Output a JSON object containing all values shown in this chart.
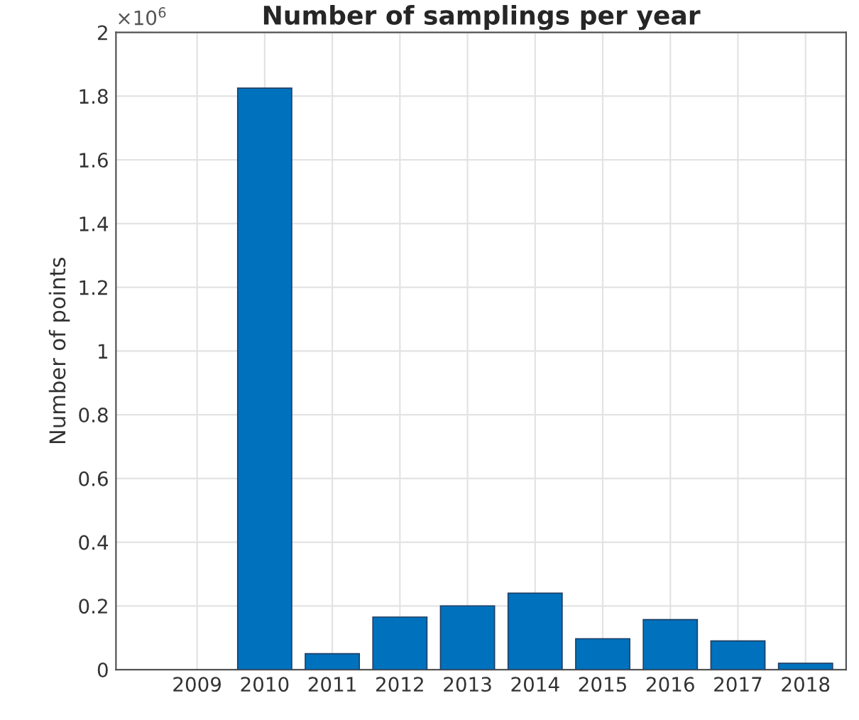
{
  "chart_data": {
    "type": "bar",
    "title": "Number of samplings per year",
    "ylabel": "Number of points",
    "categories": [
      "2009",
      "2010",
      "2011",
      "2012",
      "2013",
      "2014",
      "2015",
      "2016",
      "2017",
      "2018"
    ],
    "values": [
      null,
      1.825,
      0.05,
      0.165,
      0.2,
      0.24,
      0.097,
      0.157,
      0.09,
      0.02
    ],
    "color": "#0072bd",
    "ylim": [
      0,
      2
    ],
    "yticks": [
      0,
      0.2,
      0.4,
      0.6,
      0.8,
      1,
      1.2,
      1.4,
      1.6,
      1.8,
      2
    ],
    "annotations": [
      "×10$^{6}$"
    ],
    "grid": true
  }
}
